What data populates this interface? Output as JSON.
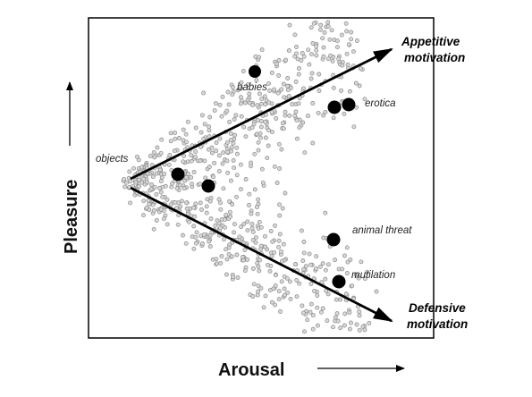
{
  "axes": {
    "x_label": "Arousal",
    "y_label": "Pleasure"
  },
  "vectors": {
    "appetitive": {
      "label_line1": "Appetitive",
      "label_line2": "motivation"
    },
    "defensive": {
      "label_line1": "Defensive",
      "label_line2": "motivation"
    }
  },
  "points": {
    "objects": "objects",
    "babies": "babies",
    "erotica": "erotica",
    "animal_threat": "animal threat",
    "mutilation": "mutilation"
  },
  "colors": {
    "scatter_fill": "#d8d8d8",
    "scatter_stroke": "#8a8a8a",
    "highlight": "#000000",
    "frame": "#000000"
  }
}
